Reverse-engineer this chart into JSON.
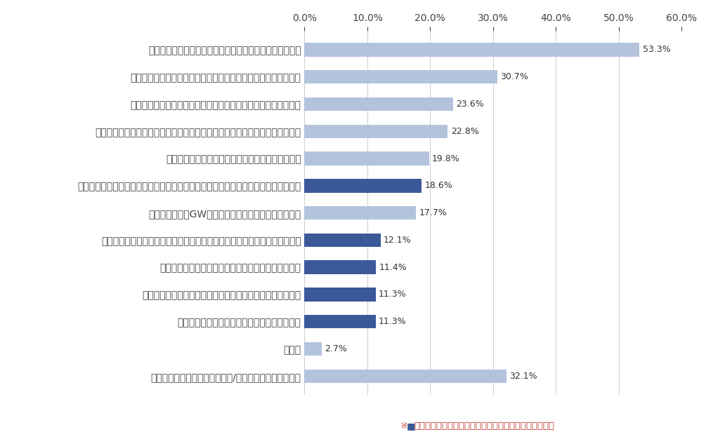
{
  "categories": [
    "航空券のキャンペーン・セール情報（タイムセールなど）",
    "マイルに関連したお得なキャンペーン・会員優待に関連した情報",
    "該当の航空会社の就航路線における旅行・観光案内・ご当地情報",
    "該当の航空会社が運営するショッピングサイトのキャンペーン・イベント情報",
    "ライフイベントに応じたキャンペーンや特典の案内",
    "予約したプランに基づいた保安検査場締め切りや搭乗口案内などのタイムリーな情報",
    "オンシーズン（GWや年末年始など）の空席状況の案内",
    "予約内容や空港での行動に基づいた、自身の状況に最適化された対応や案内",
    "過去の搭乗履歴に基づいた旅行先や旅行プランの提案",
    "予約したプランに基づいた旅行先のリアルタイムの観光案内",
    "自身の生活状況に応じたライフスタイルの提案",
    "その他",
    "特に受け取っている情報はない/今後希望する情報はない"
  ],
  "values": [
    53.3,
    30.7,
    23.6,
    22.8,
    19.8,
    18.6,
    17.7,
    12.1,
    11.4,
    11.3,
    11.3,
    2.7,
    32.1
  ],
  "colors": [
    "#b3c3dc",
    "#b3c3dc",
    "#b3c3dc",
    "#b3c3dc",
    "#b3c3dc",
    "#3b5998",
    "#b3c3dc",
    "#3b5998",
    "#3b5998",
    "#3b5998",
    "#3b5998",
    "#b3c3dc",
    "#b3c3dc"
  ],
  "value_labels": [
    "53.3%",
    "30.7%",
    "23.6%",
    "22.8%",
    "19.8%",
    "18.6%",
    "17.7%",
    "12.1%",
    "11.4%",
    "11.3%",
    "11.3%",
    "2.7%",
    "32.1%"
  ],
  "xlim": [
    0,
    60
  ],
  "xticks": [
    0,
    10,
    20,
    30,
    40,
    50,
    60
  ],
  "bg_color": "#ffffff",
  "bar_height": 0.5,
  "grid_color": "#cccccc",
  "label_fontsize": 9,
  "value_fontsize": 9,
  "tick_fontsize": 9
}
